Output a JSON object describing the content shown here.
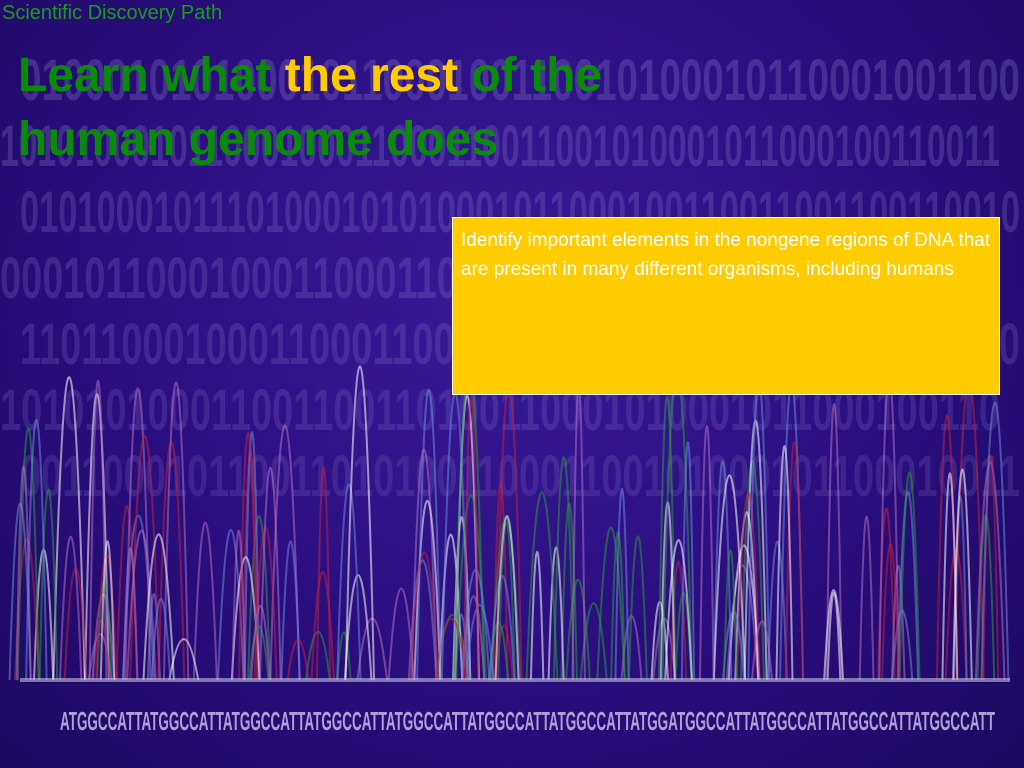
{
  "header": {
    "label": "Scientific Discovery Path"
  },
  "title": {
    "parts": [
      {
        "text": "Learn what ",
        "color": "#0a8a0a"
      },
      {
        "text": "the rest",
        "color": "#ffcc00"
      },
      {
        "text": " of the human genome does",
        "color": "#0a8a0a"
      }
    ]
  },
  "callout": {
    "text": "Identify important elements in the nongene regions of DNA that are present in many different organisms, including humans"
  },
  "background": {
    "binary_rows": [
      "01000101010001011000100110010100010110001001100",
      "101010001011000100011000110011001010001011000100110011",
      "01010001011101000101010001011000100110011001100110010",
      "000101100010001100011001010001011000100110011001",
      "110110001000110001100100101000101100010011001010",
      "101010100011001100110100110001010001011000100110",
      "001100010110011010100110001100101000101100010011"
    ],
    "sequence": "ATGGCCATTATGGCCATTATGGCCATTATGGCCATTATGGCCATTATGGCCATTATGGCCATTATGGATGGCCATTATGGCCATTATGGCCATTATGGCCATT"
  }
}
